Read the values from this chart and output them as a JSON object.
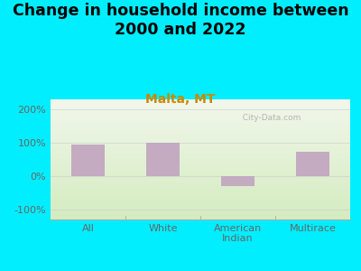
{
  "title": "Change in household income between\n2000 and 2022",
  "subtitle": "Malta, MT",
  "categories": [
    "All",
    "White",
    "American\nIndian",
    "Multirace"
  ],
  "values": [
    93,
    100,
    -30,
    72
  ],
  "bar_color": "#bf9fbf",
  "background_outer": "#00eeff",
  "background_inner_top": "#f2f7ec",
  "background_inner_bottom": "#d4ecc0",
  "yticks": [
    -100,
    0,
    100,
    200
  ],
  "ylim": [
    -130,
    230
  ],
  "title_fontsize": 12.5,
  "subtitle_fontsize": 10,
  "subtitle_color": "#cc8800",
  "tick_label_color": "#666666",
  "watermark": "  City-Data.com"
}
